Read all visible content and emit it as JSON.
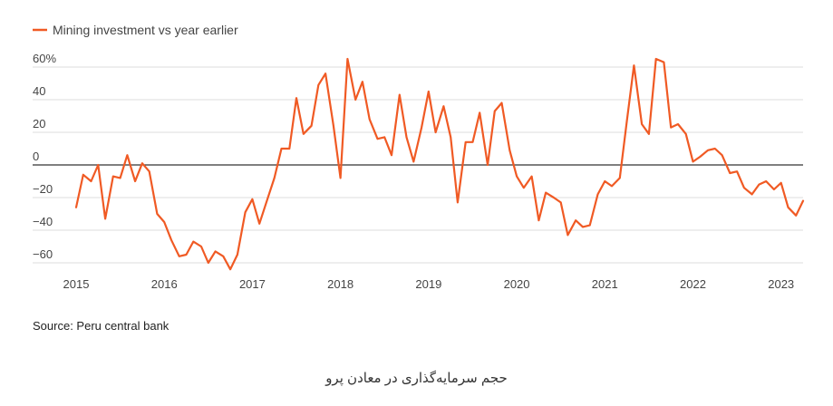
{
  "source_note": "Source: Peru central bank",
  "caption": "حجم سرمایه‌گذاری در معادن پرو",
  "colors": {
    "series": "#f05a24",
    "grid": "#dddddd",
    "zero_line": "#333333"
  },
  "chart_data": {
    "type": "line",
    "title": "",
    "xlabel": "",
    "ylabel": "",
    "ylim": [
      -60,
      60
    ],
    "xlim": [
      2015,
      2023.25
    ],
    "y_ticks": [
      60,
      40,
      20,
      0,
      -20,
      -40,
      -60
    ],
    "y_tick_labels": [
      "60%",
      "40",
      "20",
      "0",
      "−20",
      "−40",
      "−60"
    ],
    "x_ticks": [
      2015,
      2016,
      2017,
      2018,
      2019,
      2020,
      2021,
      2022,
      2023
    ],
    "x_tick_labels": [
      "2015",
      "2016",
      "2017",
      "2018",
      "2019",
      "2020",
      "2021",
      "2022",
      "2023"
    ],
    "grid": true,
    "legend": "top-left",
    "series": [
      {
        "name": "Mining investment vs year earlier",
        "color": "#f05a24",
        "x": [
          2015.0,
          2015.08,
          2015.17,
          2015.25,
          2015.33,
          2015.42,
          2015.5,
          2015.58,
          2015.67,
          2015.75,
          2015.83,
          2015.92,
          2016.0,
          2016.08,
          2016.17,
          2016.25,
          2016.33,
          2016.42,
          2016.5,
          2016.58,
          2016.67,
          2016.75,
          2016.83,
          2016.92,
          2017.0,
          2017.08,
          2017.17,
          2017.25,
          2017.33,
          2017.42,
          2017.5,
          2017.58,
          2017.67,
          2017.75,
          2017.83,
          2017.92,
          2018.0,
          2018.08,
          2018.17,
          2018.25,
          2018.33,
          2018.42,
          2018.5,
          2018.58,
          2018.67,
          2018.75,
          2018.83,
          2018.92,
          2019.0,
          2019.08,
          2019.17,
          2019.25,
          2019.33,
          2019.42,
          2019.5,
          2019.58,
          2019.67,
          2019.75,
          2019.83,
          2019.92,
          2020.0,
          2020.08,
          2020.17,
          2020.25,
          2020.33,
          2020.42,
          2020.5,
          2020.58,
          2020.67,
          2020.75,
          2020.83,
          2020.92,
          2021.0,
          2021.08,
          2021.17,
          2021.25,
          2021.33,
          2021.42,
          2021.5,
          2021.58,
          2021.67,
          2021.75,
          2021.83,
          2021.92,
          2022.0,
          2022.08,
          2022.17,
          2022.25,
          2022.33,
          2022.42,
          2022.5,
          2022.58,
          2022.67,
          2022.75,
          2022.83,
          2022.92,
          2023.0,
          2023.08,
          2023.17,
          2023.25
        ],
        "values": [
          -26,
          -6,
          -10,
          0,
          -33,
          -7,
          -8,
          6,
          -10,
          1,
          -4,
          -30,
          -35,
          -46,
          -56,
          -55,
          -47,
          -50,
          -60,
          -53,
          -56,
          -64,
          -55,
          -29,
          -21,
          -36,
          -21,
          -8,
          10,
          10,
          41,
          19,
          24,
          49,
          56,
          24,
          -8,
          65,
          40,
          51,
          28,
          16,
          17,
          6,
          43,
          17,
          2,
          23,
          45,
          20,
          36,
          17,
          -23,
          14,
          14,
          32,
          0,
          33,
          38,
          9,
          -7,
          -14,
          -7,
          -34,
          -17,
          -20,
          -23,
          -43,
          -34,
          -38,
          -37,
          -18,
          -10,
          -13,
          -8,
          27,
          61,
          25,
          19,
          65,
          63,
          23,
          25,
          19,
          2,
          5,
          9,
          10,
          6,
          -5,
          -4,
          -14,
          -18,
          -12,
          -10,
          -15,
          -11,
          -26,
          -31,
          -22
        ]
      }
    ]
  }
}
